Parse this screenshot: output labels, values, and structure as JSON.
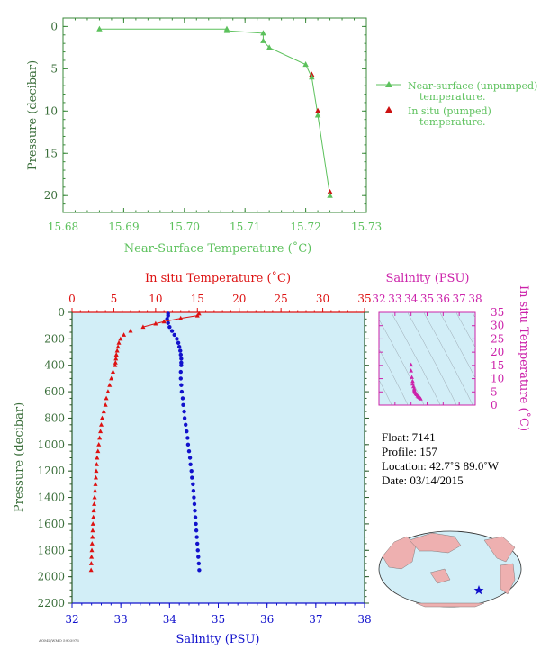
{
  "chart_data": [
    {
      "type": "scatter",
      "xlabel": "Near-Surface Temperature (˚C)",
      "ylabel": "Pressure (decibar)",
      "xlim": [
        15.68,
        15.73
      ],
      "ylim": [
        22,
        -1
      ],
      "x_ticks": [
        "15.68",
        "15.69",
        "15.70",
        "15.71",
        "15.72",
        "15.73"
      ],
      "y_ticks": [
        "0",
        "5",
        "10",
        "15",
        "20"
      ],
      "grid": false,
      "legend_position": "right",
      "series": [
        {
          "name": "Near-surface (unpumped) temperature.",
          "color": "#5cc15c",
          "marker": "triangle",
          "line": true,
          "points": [
            [
              15.686,
              0.3
            ],
            [
              15.707,
              0.3
            ],
            [
              15.707,
              0.5
            ],
            [
              15.713,
              0.8
            ],
            [
              15.713,
              1.7
            ],
            [
              15.714,
              2.5
            ],
            [
              15.72,
              4.5
            ],
            [
              15.721,
              6.0
            ],
            [
              15.722,
              10.5
            ],
            [
              15.724,
              20.0
            ]
          ]
        },
        {
          "name": "In situ (pumped) temperature.",
          "color": "#cc1111",
          "marker": "triangle",
          "line": false,
          "points": [
            [
              15.721,
              5.7
            ],
            [
              15.722,
              10.0
            ],
            [
              15.724,
              19.6
            ]
          ]
        }
      ]
    },
    {
      "type": "scatter",
      "top_xlabel": "In situ Temperature (˚C)",
      "bottom_xlabel": "Salinity (PSU)",
      "ylabel": "Pressure (decibar)",
      "temp_lim": [
        0,
        35
      ],
      "sal_lim": [
        32,
        38
      ],
      "ylim": [
        2200,
        0
      ],
      "temp_ticks": [
        "0",
        "5",
        "10",
        "15",
        "20",
        "25",
        "30",
        "35"
      ],
      "sal_ticks": [
        "32",
        "33",
        "34",
        "35",
        "36",
        "37",
        "38"
      ],
      "y_ticks": [
        "0",
        "200",
        "400",
        "600",
        "800",
        "1000",
        "1200",
        "1400",
        "1600",
        "1800",
        "2000",
        "2200"
      ],
      "background": "#d2eef7",
      "series": [
        {
          "name": "In situ Temperature",
          "color": "#dd1111",
          "marker": "triangle",
          "axis": "temperature",
          "points": [
            [
              15.2,
              10
            ],
            [
              15.0,
              25
            ],
            [
              13,
              45
            ],
            [
              11,
              70
            ],
            [
              10,
              85
            ],
            [
              8.5,
              110
            ],
            [
              7,
              140
            ],
            [
              6.2,
              170
            ],
            [
              5.8,
              200
            ],
            [
              5.6,
              230
            ],
            [
              5.5,
              260
            ],
            [
              5.4,
              290
            ],
            [
              5.3,
              320
            ],
            [
              5.25,
              350
            ],
            [
              5.2,
              380
            ],
            [
              5.15,
              400
            ],
            [
              4.9,
              450
            ],
            [
              4.7,
              500
            ],
            [
              4.5,
              550
            ],
            [
              4.3,
              600
            ],
            [
              4.1,
              650
            ],
            [
              4.0,
              700
            ],
            [
              3.8,
              750
            ],
            [
              3.6,
              800
            ],
            [
              3.5,
              850
            ],
            [
              3.4,
              900
            ],
            [
              3.3,
              950
            ],
            [
              3.2,
              1000
            ],
            [
              3.1,
              1050
            ],
            [
              3.0,
              1100
            ],
            [
              2.95,
              1150
            ],
            [
              2.9,
              1200
            ],
            [
              2.85,
              1250
            ],
            [
              2.8,
              1300
            ],
            [
              2.75,
              1350
            ],
            [
              2.7,
              1400
            ],
            [
              2.65,
              1450
            ],
            [
              2.6,
              1500
            ],
            [
              2.55,
              1550
            ],
            [
              2.5,
              1600
            ],
            [
              2.47,
              1650
            ],
            [
              2.44,
              1700
            ],
            [
              2.4,
              1750
            ],
            [
              2.37,
              1800
            ],
            [
              2.33,
              1850
            ],
            [
              2.3,
              1900
            ],
            [
              2.28,
              1950
            ]
          ]
        },
        {
          "name": "Salinity",
          "color": "#1111cc",
          "marker": "circle",
          "axis": "salinity",
          "points": [
            [
              33.97,
              10
            ],
            [
              33.97,
              25
            ],
            [
              33.95,
              50
            ],
            [
              33.97,
              80
            ],
            [
              34.0,
              110
            ],
            [
              34.05,
              140
            ],
            [
              34.1,
              170
            ],
            [
              34.15,
              200
            ],
            [
              34.18,
              230
            ],
            [
              34.2,
              260
            ],
            [
              34.22,
              290
            ],
            [
              34.23,
              320
            ],
            [
              34.24,
              350
            ],
            [
              34.24,
              380
            ],
            [
              34.24,
              400
            ],
            [
              34.23,
              450
            ],
            [
              34.23,
              500
            ],
            [
              34.24,
              550
            ],
            [
              34.25,
              600
            ],
            [
              34.27,
              650
            ],
            [
              34.28,
              700
            ],
            [
              34.3,
              750
            ],
            [
              34.31,
              800
            ],
            [
              34.33,
              850
            ],
            [
              34.35,
              900
            ],
            [
              34.37,
              950
            ],
            [
              34.38,
              1000
            ],
            [
              34.4,
              1050
            ],
            [
              34.42,
              1100
            ],
            [
              34.43,
              1150
            ],
            [
              34.45,
              1200
            ],
            [
              34.46,
              1250
            ],
            [
              34.48,
              1300
            ],
            [
              34.49,
              1350
            ],
            [
              34.5,
              1400
            ],
            [
              34.51,
              1450
            ],
            [
              34.52,
              1500
            ],
            [
              34.53,
              1550
            ],
            [
              34.54,
              1600
            ],
            [
              34.55,
              1650
            ],
            [
              34.56,
              1700
            ],
            [
              34.57,
              1750
            ],
            [
              34.58,
              1800
            ],
            [
              34.59,
              1850
            ],
            [
              34.6,
              1900
            ],
            [
              34.61,
              1950
            ]
          ]
        }
      ]
    },
    {
      "type": "scatter",
      "top_xlabel": "Salinity (PSU)",
      "ylabel": "In situ Temperature (˚C)",
      "xlim": [
        32,
        38
      ],
      "ylim": [
        0,
        35
      ],
      "x_ticks": [
        "32",
        "33",
        "34",
        "35",
        "36",
        "37",
        "38"
      ],
      "y_ticks": [
        "0",
        "5",
        "10",
        "15",
        "20",
        "25",
        "30",
        "35"
      ],
      "color": "#cc22aa",
      "points": [
        [
          34.0,
          15.2
        ],
        [
          34.0,
          13.0
        ],
        [
          34.05,
          10.5
        ],
        [
          34.1,
          9.0
        ],
        [
          34.1,
          8.0
        ],
        [
          34.15,
          7.0
        ],
        [
          34.2,
          6.2
        ],
        [
          34.2,
          5.6
        ],
        [
          34.23,
          5.3
        ],
        [
          34.25,
          4.8
        ],
        [
          34.3,
          4.3
        ],
        [
          34.35,
          4.0
        ],
        [
          34.4,
          3.5
        ],
        [
          34.45,
          3.2
        ],
        [
          34.5,
          3.0
        ],
        [
          34.55,
          2.7
        ],
        [
          34.6,
          2.4
        ]
      ]
    }
  ],
  "float_info": {
    "float": "Float:  7141",
    "profile": "Profile:  157",
    "location": "Location:  42.7˚S  89.0˚W",
    "date": "Date:  03/14/2015"
  },
  "footer_code": "AOML/WMO 5903976"
}
